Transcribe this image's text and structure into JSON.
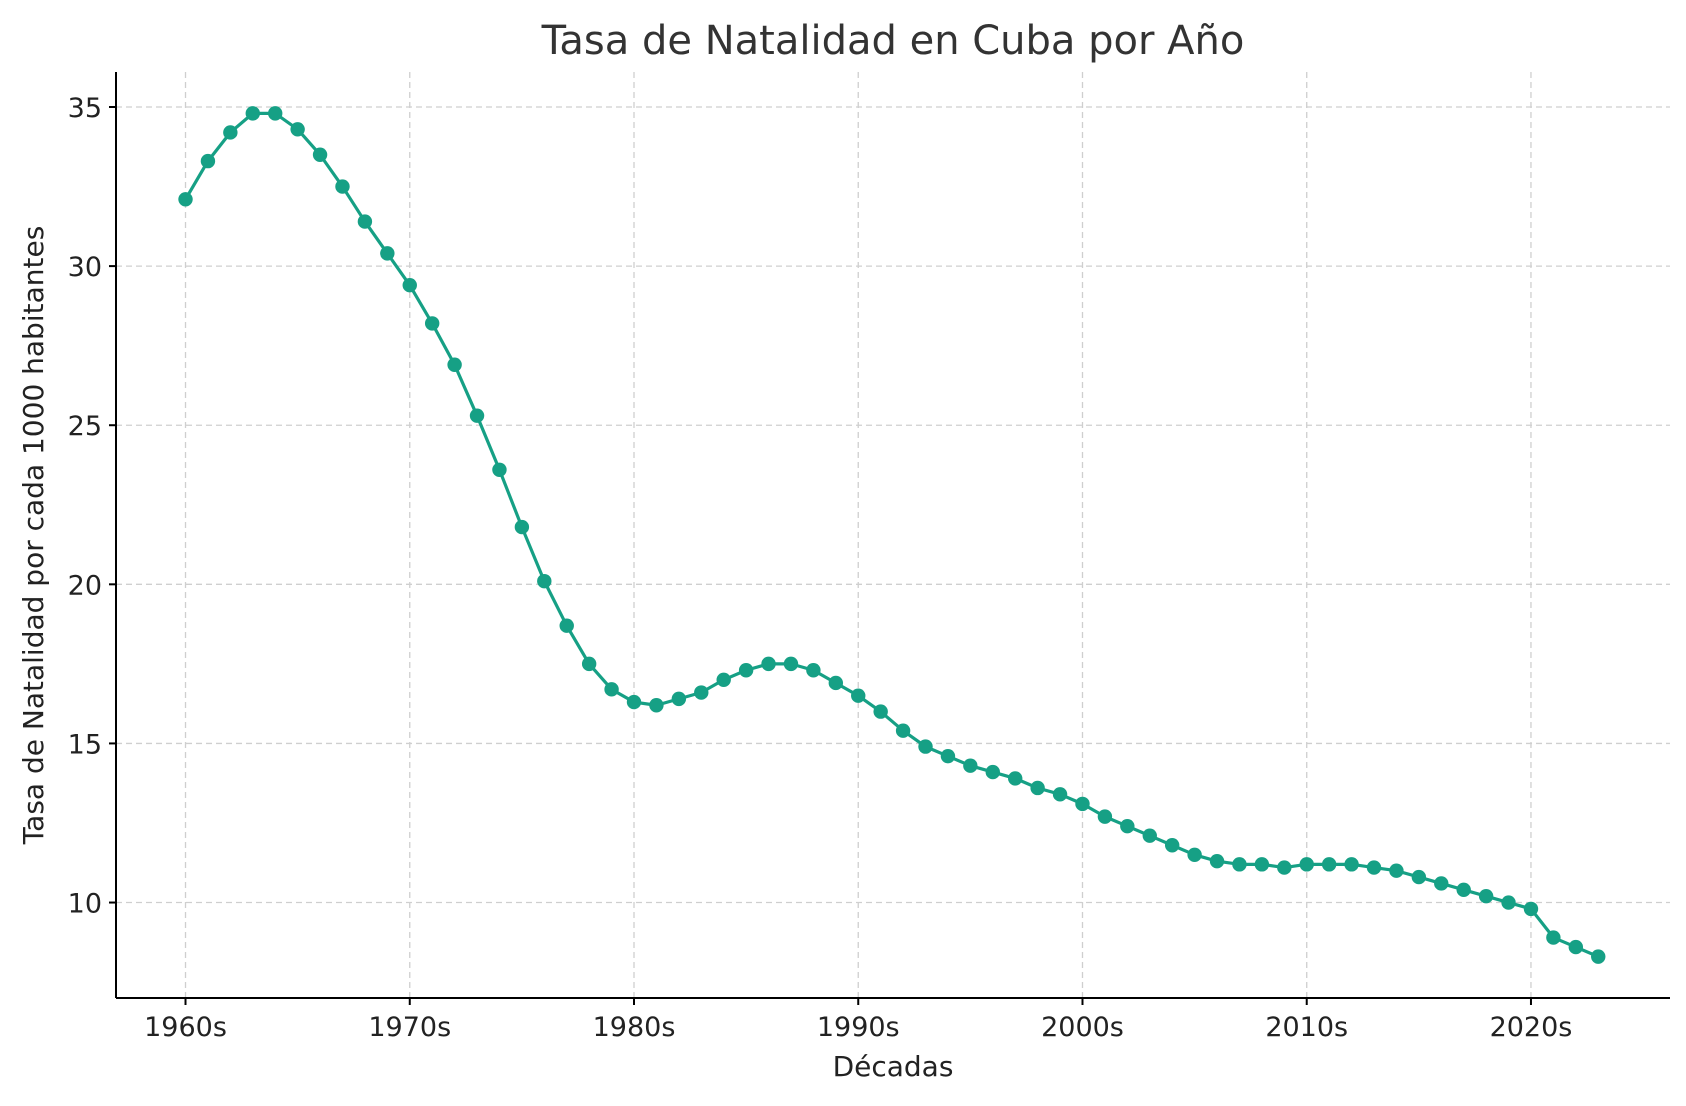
{
  "chart_data": {
    "type": "line",
    "title": "Tasa de Natalidad en Cuba por Año",
    "xlabel": "Décadas",
    "ylabel": "Tasa de Natalidad por cada 1000 habitantes",
    "xlim": [
      1956.9,
      2026.2
    ],
    "ylim": [
      7.0,
      36.1
    ],
    "grid": true,
    "legend": "none",
    "x_ticks": [
      {
        "value": 1960,
        "label": "1960s"
      },
      {
        "value": 1970,
        "label": "1970s"
      },
      {
        "value": 1980,
        "label": "1980s"
      },
      {
        "value": 1990,
        "label": "1990s"
      },
      {
        "value": 2000,
        "label": "2000s"
      },
      {
        "value": 2010,
        "label": "2010s"
      },
      {
        "value": 2020,
        "label": "2020s"
      }
    ],
    "y_ticks": [
      {
        "value": 10,
        "label": "10"
      },
      {
        "value": 15,
        "label": "15"
      },
      {
        "value": 20,
        "label": "20"
      },
      {
        "value": 25,
        "label": "25"
      },
      {
        "value": 30,
        "label": "30"
      },
      {
        "value": 35,
        "label": "35"
      }
    ],
    "series": [
      {
        "color": "#16a085",
        "x": [
          1960,
          1961,
          1962,
          1963,
          1964,
          1965,
          1966,
          1967,
          1968,
          1969,
          1970,
          1971,
          1972,
          1973,
          1974,
          1975,
          1976,
          1977,
          1978,
          1979,
          1980,
          1981,
          1982,
          1983,
          1984,
          1985,
          1986,
          1987,
          1988,
          1989,
          1990,
          1991,
          1992,
          1993,
          1994,
          1995,
          1996,
          1997,
          1998,
          1999,
          2000,
          2001,
          2002,
          2003,
          2004,
          2005,
          2006,
          2007,
          2008,
          2009,
          2010,
          2011,
          2012,
          2013,
          2014,
          2015,
          2016,
          2017,
          2018,
          2019,
          2020,
          2021,
          2022,
          2023
        ],
        "values": [
          32.1,
          33.3,
          34.2,
          34.8,
          34.8,
          34.3,
          33.5,
          32.5,
          31.4,
          30.4,
          29.4,
          28.2,
          26.9,
          25.3,
          23.6,
          21.8,
          20.1,
          18.7,
          17.5,
          16.7,
          16.3,
          16.2,
          16.4,
          16.6,
          17.0,
          17.3,
          17.5,
          17.5,
          17.3,
          16.9,
          16.5,
          16.0,
          15.4,
          14.9,
          14.6,
          14.3,
          14.1,
          13.9,
          13.6,
          13.4,
          13.1,
          12.7,
          12.4,
          12.1,
          11.8,
          11.5,
          11.3,
          11.2,
          11.2,
          11.1,
          11.2,
          11.2,
          11.2,
          11.1,
          11.0,
          10.8,
          10.6,
          10.4,
          10.2,
          10.0,
          9.8,
          8.9,
          8.6,
          8.3
        ]
      }
    ]
  }
}
